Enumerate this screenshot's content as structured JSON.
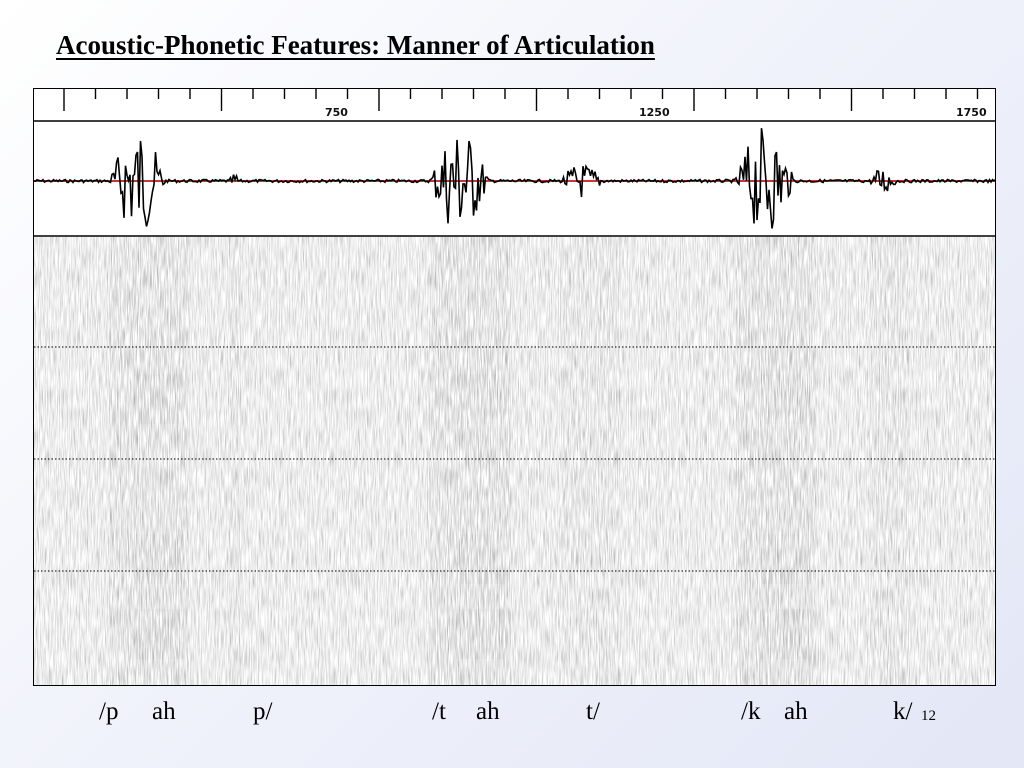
{
  "title": "Acoustic-Phonetic Features: Manner of Articulation",
  "ruler": {
    "tick_labels": [
      "750",
      "1250",
      "1750"
    ]
  },
  "figure": {
    "panels": [
      "waveform",
      "spectrogram"
    ],
    "baseline_color": "#c0191b",
    "spectrogram_gridlines": 3
  },
  "phonetic_labels": [
    {
      "text": "/p"
    },
    {
      "text": "ah"
    },
    {
      "text": "p/"
    },
    {
      "text": "/t"
    },
    {
      "text": "ah"
    },
    {
      "text": "t/"
    },
    {
      "text": "/k"
    },
    {
      "text": "ah"
    },
    {
      "text": "k/"
    }
  ],
  "slide_number": "12"
}
